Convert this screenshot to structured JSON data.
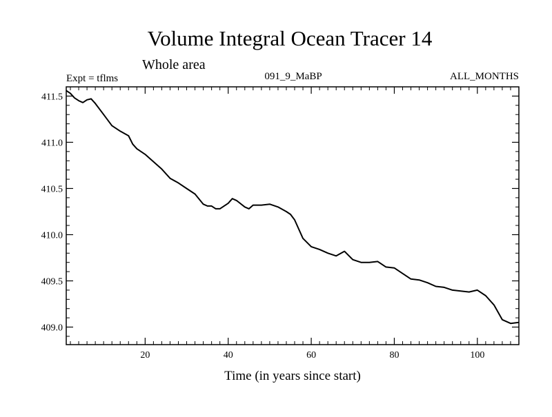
{
  "chart_data": {
    "type": "line",
    "title": "Volume Integral Ocean Tracer 14",
    "subtitle": "Whole area",
    "header_left": "Expt = tflms",
    "header_center": "091_9_MaBP",
    "header_right": "ALL_MONTHS",
    "xlabel": "Time (in years since start)",
    "ylabel": "",
    "xlim": [
      1,
      110
    ],
    "ylim": [
      408.81,
      411.6
    ],
    "x_ticks": [
      20,
      40,
      60,
      80,
      100
    ],
    "y_ticks": [
      409.0,
      409.5,
      410.0,
      410.5,
      411.0,
      411.5
    ],
    "y_tick_labels": [
      "409.0",
      "409.5",
      "410.0",
      "410.5",
      "411.0",
      "411.5"
    ],
    "grid": false,
    "series": [
      {
        "name": "Volume Integral Ocean Tracer 14",
        "x": [
          1,
          2,
          3,
          4,
          5,
          6,
          7,
          8,
          10,
          12,
          14,
          16,
          17,
          18,
          20,
          22,
          24,
          26,
          28,
          30,
          32,
          34,
          35,
          36,
          37,
          38,
          40,
          41,
          42,
          44,
          45,
          46,
          48,
          50,
          52,
          54,
          55,
          56,
          58,
          60,
          62,
          64,
          66,
          68,
          70,
          72,
          74,
          76,
          78,
          80,
          82,
          84,
          86,
          88,
          90,
          92,
          94,
          96,
          98,
          100,
          102,
          104,
          106,
          108,
          110
        ],
        "values": [
          411.56,
          411.53,
          411.48,
          411.45,
          411.43,
          411.46,
          411.47,
          411.42,
          411.3,
          411.18,
          411.12,
          411.07,
          410.98,
          410.93,
          410.87,
          410.79,
          410.71,
          410.61,
          410.56,
          410.5,
          410.44,
          410.33,
          410.31,
          410.31,
          410.28,
          410.28,
          410.34,
          410.39,
          410.37,
          410.3,
          410.28,
          410.32,
          410.32,
          410.33,
          410.3,
          410.25,
          410.22,
          410.16,
          409.96,
          409.87,
          409.84,
          409.8,
          409.77,
          409.82,
          409.73,
          409.7,
          409.7,
          409.71,
          409.65,
          409.64,
          409.58,
          409.52,
          409.51,
          409.48,
          409.44,
          409.43,
          409.4,
          409.39,
          409.38,
          409.4,
          409.34,
          409.24,
          409.08,
          409.04,
          409.05
        ]
      }
    ]
  }
}
